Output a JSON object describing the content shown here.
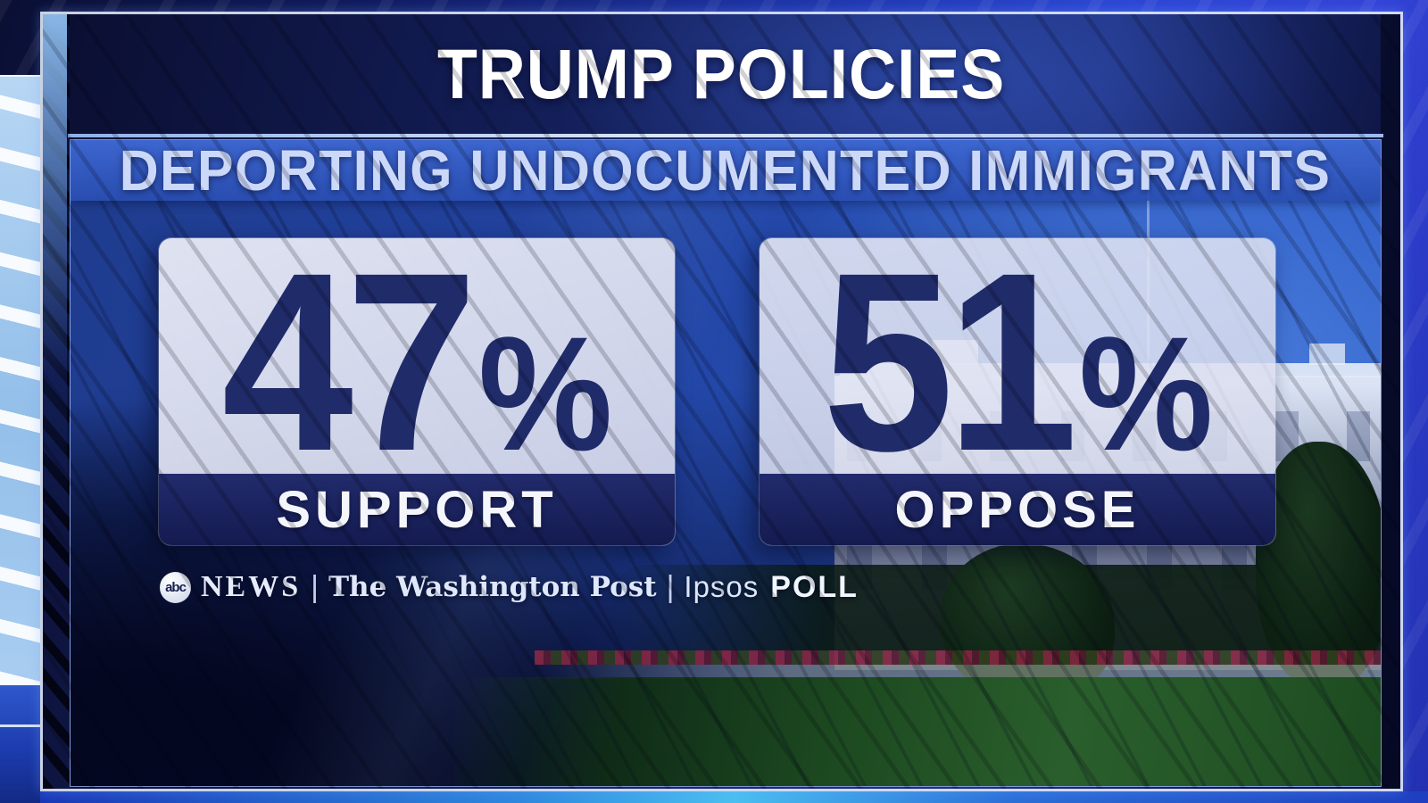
{
  "chart_data": {
    "type": "bar",
    "title": "TRUMP POLICIES",
    "subtitle": "DEPORTING UNDOCUMENTED IMMIGRANTS",
    "categories": [
      "SUPPORT",
      "OPPOSE"
    ],
    "values": [
      47,
      51
    ],
    "unit": "%",
    "source": "ABC NEWS | The Washington Post | Ipsos POLL",
    "legend_position": "none",
    "layout": "two large percentage callout cards over White House backdrop"
  },
  "title": {
    "text": "TRUMP POLICIES"
  },
  "subtitle": {
    "text": "DEPORTING UNDOCUMENTED IMMIGRANTS"
  },
  "stats": [
    {
      "value": "47",
      "unit": "%",
      "label": "SUPPORT"
    },
    {
      "value": "51",
      "unit": "%",
      "label": "OPPOSE"
    }
  ],
  "attribution": {
    "abc_logo_text": "abc",
    "abc_news": "NEWS",
    "divider": "|",
    "washington_post": "The Washington Post",
    "ipsos": "Ipsos",
    "poll": "POLL"
  },
  "colors": {
    "navy_value": "#202b69",
    "card_background": "#e0e2f0",
    "label_bar": "#141b50",
    "subtitle_text": "#ccd8f8",
    "title_text": "#ffffff",
    "sky_blue": "#2f60cc",
    "lawn_green": "#2a5e2c",
    "flag_red": "#a83248",
    "ray_panel_blue": "#a9cdf1"
  }
}
